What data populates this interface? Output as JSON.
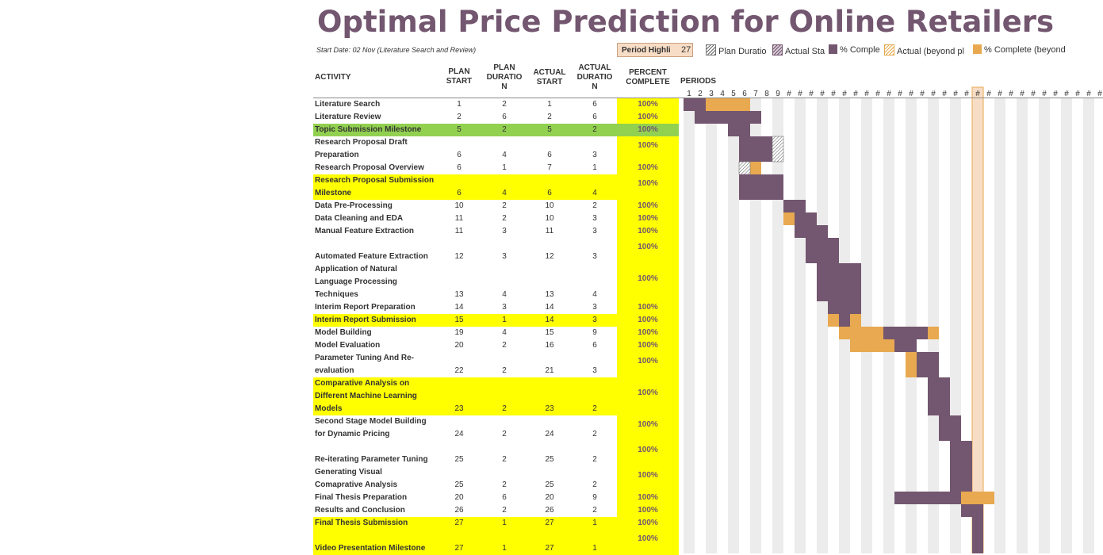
{
  "title": "Optimal Price Prediction for Online Retailers",
  "start_date_note": "Start Date: 02 Nov (Literature Search and Review)",
  "period_highlight": {
    "label": "Period Highli",
    "value": "27"
  },
  "legend": [
    {
      "label": "Plan Duratio",
      "style": "hatch-light"
    },
    {
      "label": "Actual Sta",
      "style": "hatch-purple"
    },
    {
      "label": "% Comple",
      "style": "solid-purple"
    },
    {
      "label": "Actual (beyond pl",
      "style": "hatch-orange"
    },
    {
      "label": "% Complete (beyond",
      "style": "solid-orange"
    }
  ],
  "headers": {
    "activity": "ACTIVITY",
    "plan_start": [
      "PLAN",
      "START"
    ],
    "plan_duration": [
      "PLAN",
      "DURATIO",
      "N"
    ],
    "actual_start": [
      "ACTUAL",
      "START"
    ],
    "actual_duration": [
      "ACTUAL",
      "DURATIO",
      "N"
    ],
    "percent_complete": [
      "PERCENT",
      "COMPLETE"
    ],
    "periods": "PERIODS"
  },
  "period_tick_labels": [
    "1",
    "2",
    "3",
    "4",
    "5",
    "6",
    "7",
    "8",
    "9",
    "#",
    "#",
    "#",
    "#",
    "#",
    "#",
    "#",
    "#",
    "#",
    "#",
    "#",
    "#",
    "#",
    "#",
    "#",
    "#",
    "#",
    "#",
    "#",
    "#",
    "#",
    "#",
    "#",
    "#",
    "#",
    "#",
    "#",
    "#",
    "#"
  ],
  "colors": {
    "plan_bar": "#73566f",
    "beyond_bar": "#e8a950",
    "highlight_column": "#f8ddc6",
    "highlight_border": "#e8a950",
    "milestone_green": "#92d050",
    "milestone_yellow": "#ffff00",
    "stripe": "#ececec",
    "title": "#73566f"
  },
  "chart_data": {
    "type": "gantt",
    "title": "Optimal Price Prediction for Online Retailers",
    "highlight_period": 27,
    "activities": [
      {
        "name": [
          "Literature Search"
        ],
        "plan_start": 1,
        "plan_duration": 2,
        "actual_start": 1,
        "actual_duration": 6,
        "percent": "100%",
        "highlight": "none"
      },
      {
        "name": [
          "Literature Review"
        ],
        "plan_start": 2,
        "plan_duration": 6,
        "actual_start": 2,
        "actual_duration": 6,
        "percent": "100%",
        "highlight": "none"
      },
      {
        "name": [
          "Topic Submission Milestone"
        ],
        "plan_start": 5,
        "plan_duration": 2,
        "actual_start": 5,
        "actual_duration": 2,
        "percent": "100%",
        "highlight": "green"
      },
      {
        "name": [
          "Research Proposal Draft",
          "Preparation"
        ],
        "plan_start": 6,
        "plan_duration": 4,
        "actual_start": 6,
        "actual_duration": 3,
        "percent": "100%",
        "highlight": "none"
      },
      {
        "name": [
          "Research Proposal Overview"
        ],
        "plan_start": 6,
        "plan_duration": 1,
        "actual_start": 7,
        "actual_duration": 1,
        "percent": "100%",
        "highlight": "none"
      },
      {
        "name": [
          "Research Proposal Submission",
          "Milestone"
        ],
        "plan_start": 6,
        "plan_duration": 4,
        "actual_start": 6,
        "actual_duration": 4,
        "percent": "100%",
        "highlight": "yellow"
      },
      {
        "name": [
          "Data Pre-Processing"
        ],
        "plan_start": 10,
        "plan_duration": 2,
        "actual_start": 10,
        "actual_duration": 2,
        "percent": "100%",
        "highlight": "none"
      },
      {
        "name": [
          "Data Cleaning and EDA"
        ],
        "plan_start": 11,
        "plan_duration": 2,
        "actual_start": 10,
        "actual_duration": 3,
        "percent": "100%",
        "highlight": "none"
      },
      {
        "name": [
          "Manual Feature Extraction"
        ],
        "plan_start": 11,
        "plan_duration": 3,
        "actual_start": 11,
        "actual_duration": 3,
        "percent": "100%",
        "highlight": "none"
      },
      {
        "name": [
          "",
          "Automated Feature Extraction"
        ],
        "plan_start": 12,
        "plan_duration": 3,
        "actual_start": 12,
        "actual_duration": 3,
        "percent": "100%",
        "highlight": "none"
      },
      {
        "name": [
          "Application of Natural",
          "Language Processing",
          "Techniques"
        ],
        "plan_start": 13,
        "plan_duration": 4,
        "actual_start": 13,
        "actual_duration": 4,
        "percent": "100%",
        "highlight": "none"
      },
      {
        "name": [
          "Interim Report Preparation"
        ],
        "plan_start": 14,
        "plan_duration": 3,
        "actual_start": 14,
        "actual_duration": 3,
        "percent": "100%",
        "highlight": "none"
      },
      {
        "name": [
          "Interim Report Submission"
        ],
        "plan_start": 15,
        "plan_duration": 1,
        "actual_start": 14,
        "actual_duration": 3,
        "percent": "100%",
        "highlight": "yellow"
      },
      {
        "name": [
          "Model Building"
        ],
        "plan_start": 19,
        "plan_duration": 4,
        "actual_start": 15,
        "actual_duration": 9,
        "percent": "100%",
        "highlight": "none"
      },
      {
        "name": [
          "Model Evaluation"
        ],
        "plan_start": 20,
        "plan_duration": 2,
        "actual_start": 16,
        "actual_duration": 6,
        "percent": "100%",
        "highlight": "none"
      },
      {
        "name": [
          "Parameter Tuning And Re-",
          "evaluation"
        ],
        "plan_start": 22,
        "plan_duration": 2,
        "actual_start": 21,
        "actual_duration": 3,
        "percent": "100%",
        "highlight": "none"
      },
      {
        "name": [
          "Comparative Analysis on",
          "Different Machine Learning",
          "Models"
        ],
        "plan_start": 23,
        "plan_duration": 2,
        "actual_start": 23,
        "actual_duration": 2,
        "percent": "100%",
        "highlight": "yellow"
      },
      {
        "name": [
          "Second Stage Model Building",
          "for Dynamic Pricing"
        ],
        "plan_start": 24,
        "plan_duration": 2,
        "actual_start": 24,
        "actual_duration": 2,
        "percent": "100%",
        "highlight": "none"
      },
      {
        "name": [
          "",
          "Re-iterating Parameter Tuning"
        ],
        "plan_start": 25,
        "plan_duration": 2,
        "actual_start": 25,
        "actual_duration": 2,
        "percent": "100%",
        "highlight": "none"
      },
      {
        "name": [
          "Generating Visual",
          "Comaprative Analysis"
        ],
        "plan_start": 25,
        "plan_duration": 2,
        "actual_start": 25,
        "actual_duration": 2,
        "percent": "100%",
        "highlight": "none"
      },
      {
        "name": [
          "Final Thesis Preparation"
        ],
        "plan_start": 20,
        "plan_duration": 6,
        "actual_start": 20,
        "actual_duration": 9,
        "percent": "100%",
        "highlight": "none"
      },
      {
        "name": [
          "Results and Conclusion"
        ],
        "plan_start": 26,
        "plan_duration": 2,
        "actual_start": 26,
        "actual_duration": 2,
        "percent": "100%",
        "highlight": "none"
      },
      {
        "name": [
          "Final Thesis Submission"
        ],
        "plan_start": 27,
        "plan_duration": 1,
        "actual_start": 27,
        "actual_duration": 1,
        "percent": "100%",
        "highlight": "yellow"
      },
      {
        "name": [
          "",
          "Video Presentation Milestone"
        ],
        "plan_start": 27,
        "plan_duration": 1,
        "actual_start": 27,
        "actual_duration": 1,
        "percent": "100%",
        "highlight": "yellow"
      }
    ]
  }
}
